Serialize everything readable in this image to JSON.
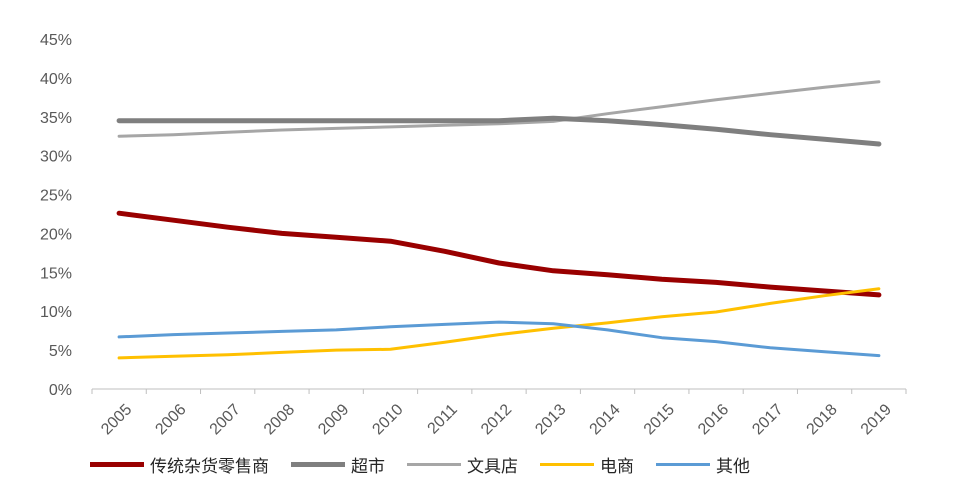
{
  "chart_data": {
    "type": "line",
    "title": "",
    "xlabel": "",
    "ylabel": "",
    "x": [
      "2005",
      "2006",
      "2007",
      "2008",
      "2009",
      "2010",
      "2011",
      "2012",
      "2013",
      "2014",
      "2015",
      "2016",
      "2017",
      "2018",
      "2019"
    ],
    "y_ticks": [
      "0%",
      "5%",
      "10%",
      "15%",
      "20%",
      "25%",
      "30%",
      "35%",
      "40%",
      "45%"
    ],
    "ylim": [
      0,
      45
    ],
    "grid": false,
    "legend_position": "bottom",
    "series": [
      {
        "name": "传统杂货零售商",
        "color": "#990000",
        "width": 5,
        "values": [
          22.6,
          21.7,
          20.8,
          20.0,
          19.5,
          19.0,
          17.7,
          16.2,
          15.2,
          14.7,
          14.1,
          13.7,
          13.1,
          12.6,
          12.1
        ]
      },
      {
        "name": "超市",
        "color": "#7f7f7f",
        "width": 5,
        "values": [
          34.5,
          34.5,
          34.5,
          34.5,
          34.5,
          34.5,
          34.5,
          34.5,
          34.8,
          34.5,
          34.0,
          33.4,
          32.7,
          32.1,
          31.5
        ]
      },
      {
        "name": "文具店",
        "color": "#a6a6a6",
        "width": 3,
        "values": [
          32.5,
          32.7,
          33.0,
          33.3,
          33.5,
          33.7,
          33.9,
          34.1,
          34.4,
          35.4,
          36.3,
          37.2,
          38.0,
          38.8,
          39.5
        ]
      },
      {
        "name": "电商",
        "color": "#ffc000",
        "width": 3,
        "values": [
          4.0,
          4.2,
          4.4,
          4.7,
          5.0,
          5.1,
          6.0,
          7.0,
          7.8,
          8.5,
          9.3,
          9.9,
          11.0,
          12.0,
          12.9
        ]
      },
      {
        "name": "其他",
        "color": "#5b9bd5",
        "width": 3,
        "values": [
          6.7,
          7.0,
          7.2,
          7.4,
          7.6,
          8.0,
          8.3,
          8.6,
          8.4,
          7.6,
          6.6,
          6.1,
          5.3,
          4.8,
          4.3
        ]
      }
    ]
  }
}
